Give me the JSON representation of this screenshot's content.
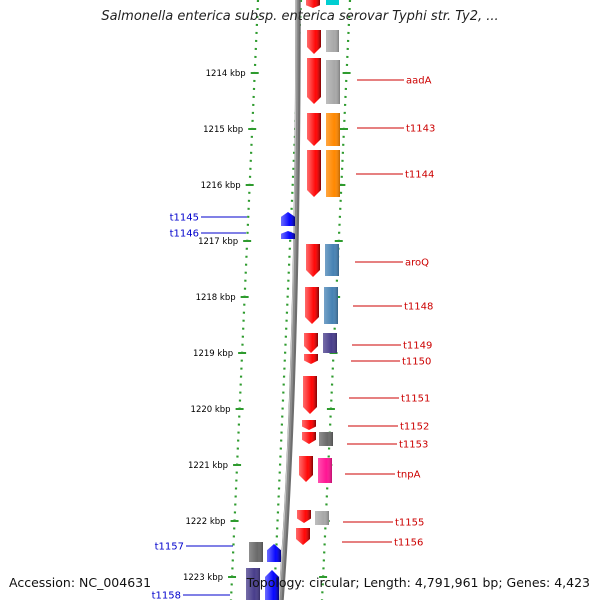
{
  "title": "Salmonella enterica subsp. enterica serovar Typhi str. Ty2, ...",
  "footer": {
    "accession": "Accession: NC_004631",
    "summary": "Topology: circular; Length: 4,791,961 bp; Genes: 4,423"
  },
  "colors": {
    "backbone": "#8c8c8c",
    "ruler_dots": "#2e9b2e",
    "forward_gene_label": "#cc0000",
    "reverse_gene_label": "#0000cc"
  },
  "ruler": {
    "labels": [
      "1214 kbp",
      "1215 kbp",
      "1216 kbp",
      "1217 kbp",
      "1218 kbp",
      "1219 kbp",
      "1220 kbp",
      "1221 kbp",
      "1222 kbp",
      "1223 kbp"
    ]
  },
  "forward_genes": [
    {
      "name": "aadA",
      "color": "#a8a8a8"
    },
    {
      "name": "t1143",
      "color": "#ff8800"
    },
    {
      "name": "t1144",
      "color": "#ff8800"
    },
    {
      "name": "aroQ",
      "color": "#4682b4"
    },
    {
      "name": "t1148",
      "color": "#4682b4"
    },
    {
      "name": "t1149",
      "color": "#483d8b"
    },
    {
      "name": "t1150",
      "color": ""
    },
    {
      "name": "t1151",
      "color": ""
    },
    {
      "name": "t1152",
      "color": ""
    },
    {
      "name": "t1153",
      "color": "#696969"
    },
    {
      "name": "tnpA",
      "color": "#ff1493"
    },
    {
      "name": "t1155",
      "color": "#a8a8a8"
    },
    {
      "name": "t1156",
      "color": ""
    }
  ],
  "reverse_genes": [
    {
      "name": "t1145",
      "color": ""
    },
    {
      "name": "t1146",
      "color": ""
    },
    {
      "name": "t1157",
      "color": "#696969"
    },
    {
      "name": "t1158",
      "color": "#483d8b"
    }
  ]
}
